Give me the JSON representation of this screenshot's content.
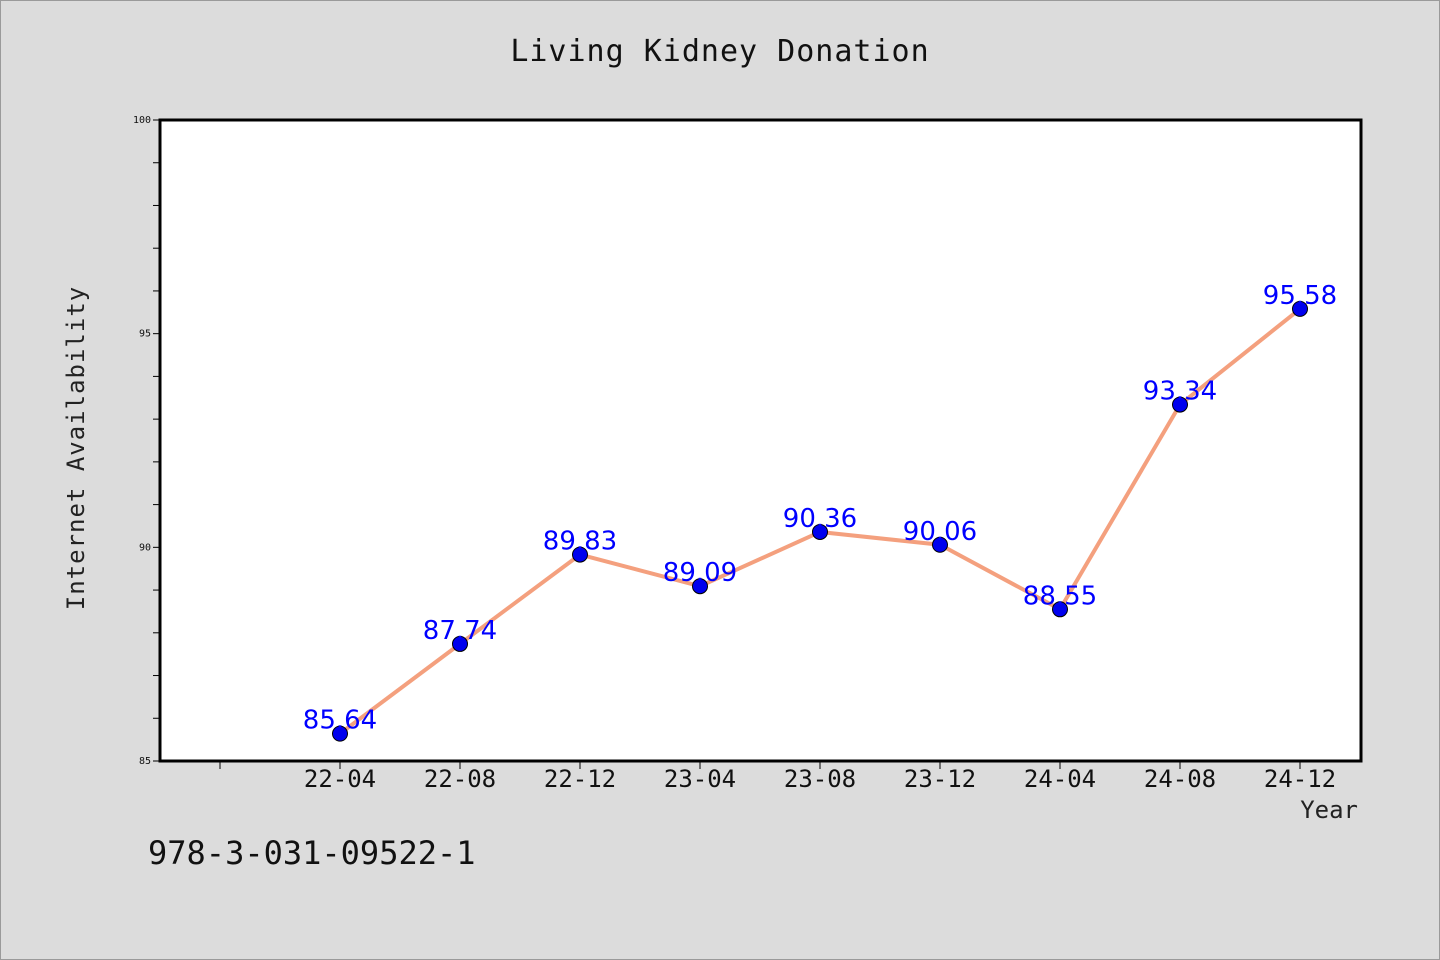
{
  "chart_data": {
    "type": "line",
    "title": "Living Kidney Donation",
    "xlabel": "Year",
    "ylabel": "Internet Availability",
    "categories": [
      "22-04",
      "22-08",
      "22-12",
      "23-04",
      "23-08",
      "23-12",
      "24-04",
      "24-08",
      "24-12"
    ],
    "series": [
      {
        "values": [
          85.64,
          87.74,
          89.83,
          89.09,
          90.36,
          90.06,
          88.55,
          93.34,
          95.58
        ],
        "line_color": "#f4a07e",
        "marker_color": "#0000ee",
        "label_color": "#0000ff"
      }
    ],
    "data_labels": [
      "85.64",
      "87.74",
      "89.83",
      "89.09",
      "90.36",
      "90.06",
      "88.55",
      "93.34",
      "95.58"
    ],
    "ylim": [
      85,
      100
    ],
    "y_ticks": [
      85,
      90,
      95,
      100
    ],
    "y_tick_labels": [
      "85",
      "90",
      "95",
      "100"
    ],
    "grid": false,
    "legend": "none"
  },
  "footer": {
    "isbn": "978-3-031-09522-1"
  }
}
